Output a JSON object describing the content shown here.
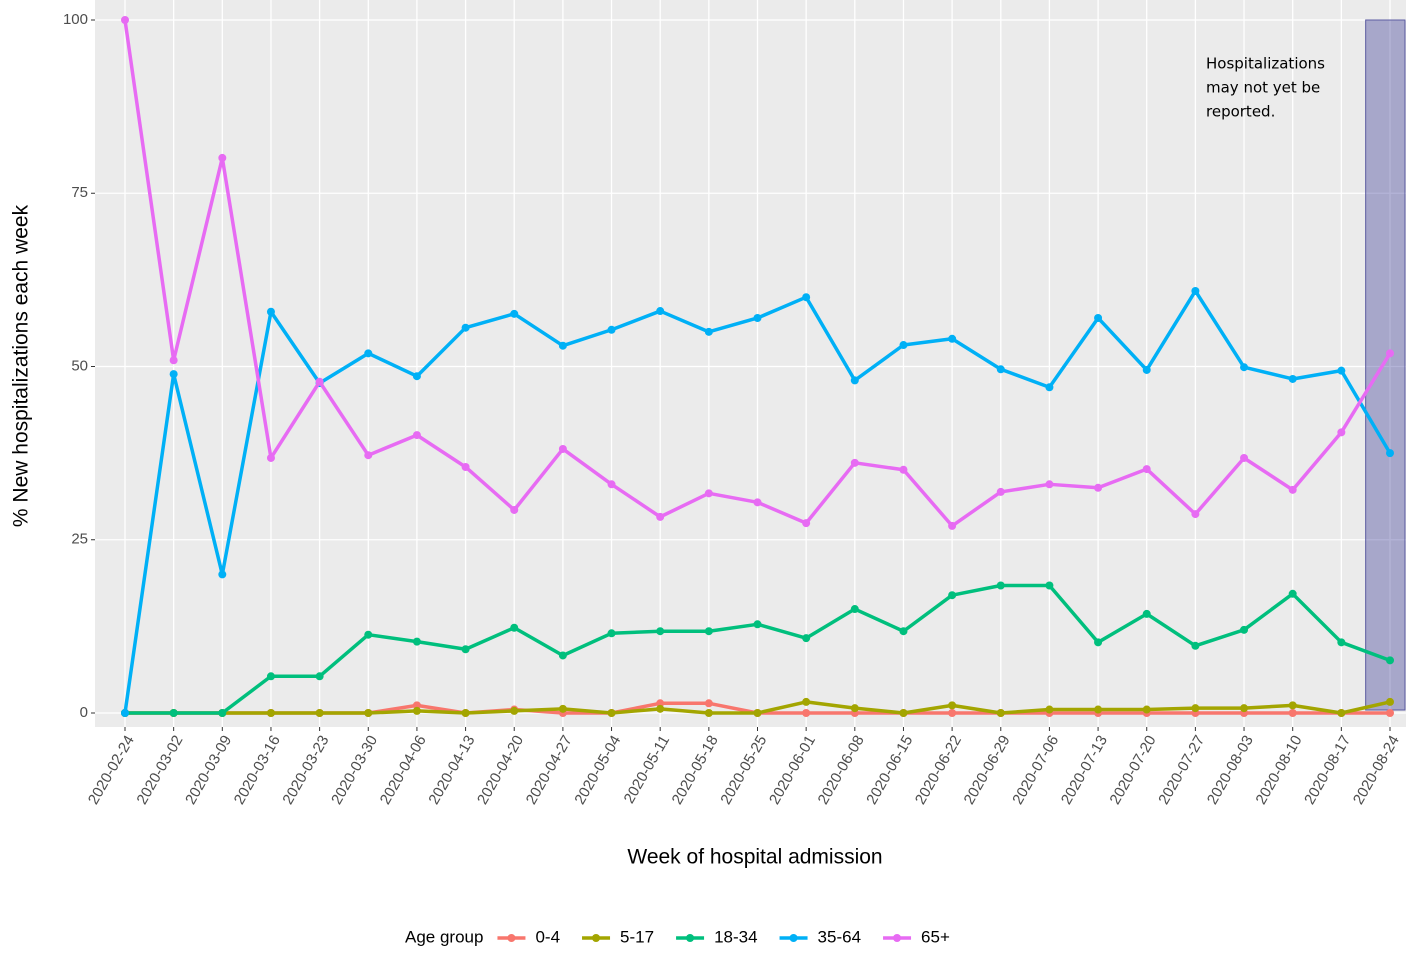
{
  "chart_data": {
    "type": "line",
    "x_label": "Week of hospital admission",
    "y_label": "% New hospitalizations each week",
    "legend_title": "Age group",
    "legend_position": "bottom",
    "grid": true,
    "annotation": [
      "Hospitalizations",
      "may not yet be",
      "reported."
    ],
    "categories": [
      "2020-02-24",
      "2020-03-02",
      "2020-03-09",
      "2020-03-16",
      "2020-03-23",
      "2020-03-30",
      "2020-04-06",
      "2020-04-13",
      "2020-04-20",
      "2020-04-27",
      "2020-05-04",
      "2020-05-11",
      "2020-05-18",
      "2020-05-25",
      "2020-06-01",
      "2020-06-08",
      "2020-06-15",
      "2020-06-22",
      "2020-06-29",
      "2020-07-06",
      "2020-07-13",
      "2020-07-20",
      "2020-07-27",
      "2020-08-03",
      "2020-08-10",
      "2020-08-17",
      "2020-08-24"
    ],
    "ylim": [
      0,
      100
    ],
    "yticks": [
      0,
      25,
      50,
      75,
      100
    ],
    "series": [
      {
        "name": "0-4",
        "color": "#F8766D",
        "values": [
          0,
          0,
          0,
          0,
          0,
          0,
          1.1,
          0,
          0.5,
          0,
          0,
          1.4,
          1.4,
          0,
          0,
          0,
          0,
          0,
          0,
          0,
          0,
          0,
          0,
          0,
          0,
          0,
          0
        ]
      },
      {
        "name": "5-17",
        "color": "#A3A500",
        "values": [
          0,
          0,
          0,
          0,
          0,
          0,
          0.3,
          0,
          0.3,
          0.6,
          0,
          0.6,
          0,
          0,
          1.6,
          0.7,
          0,
          1.1,
          0,
          0.5,
          0.5,
          0.5,
          0.7,
          0.7,
          1.1,
          0,
          1.6
        ]
      },
      {
        "name": "18-34",
        "color": "#00BF7D",
        "values": [
          0,
          0,
          0,
          5.3,
          5.3,
          11.3,
          10.3,
          9.2,
          12.3,
          8.3,
          11.5,
          11.8,
          11.8,
          12.8,
          10.8,
          15,
          11.8,
          17,
          18.4,
          18.4,
          10.2,
          14.3,
          9.7,
          12,
          17.2,
          10.2,
          7.6
        ]
      },
      {
        "name": "35-64",
        "color": "#00B0F6",
        "values": [
          0,
          48.9,
          20,
          57.9,
          47.6,
          51.9,
          48.6,
          55.6,
          57.6,
          53,
          55.3,
          58,
          55,
          57,
          60,
          48,
          53.1,
          54,
          49.6,
          47,
          57,
          49.5,
          60.9,
          49.9,
          48.2,
          49.4,
          37.5
        ]
      },
      {
        "name": "65+",
        "color": "#E76BF3",
        "values": [
          100,
          50.9,
          80.1,
          36.8,
          47.8,
          37.2,
          40.1,
          35.5,
          29.3,
          38.1,
          33,
          28.3,
          31.7,
          30.4,
          27.4,
          36.1,
          35.1,
          27,
          31.9,
          33,
          32.5,
          35.2,
          28.7,
          36.8,
          32.2,
          40.5,
          51.9
        ]
      }
    ]
  }
}
